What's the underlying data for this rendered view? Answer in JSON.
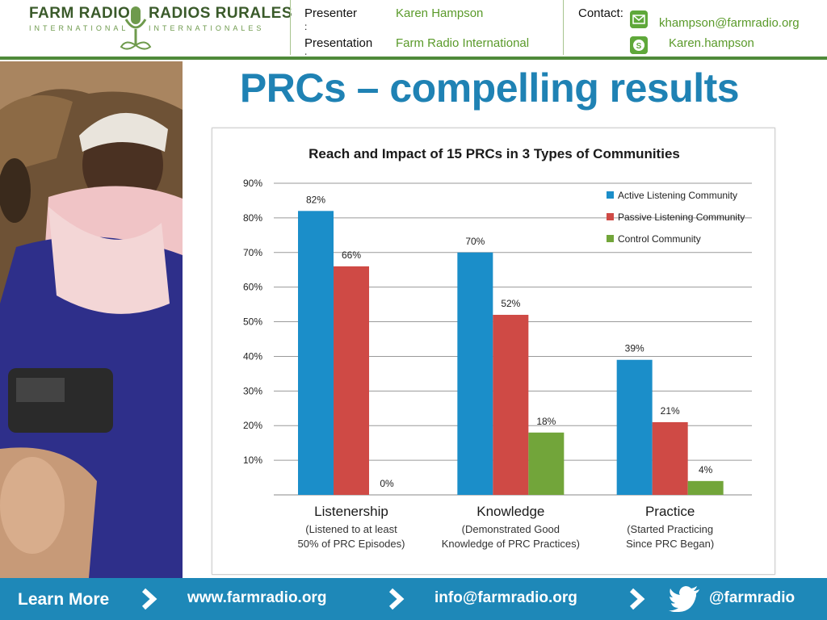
{
  "header": {
    "logo_left": "FARM RADIO",
    "logo_left_sub": "INTERNATIONAL",
    "logo_right": "RADIOS RURALES",
    "logo_right_sub": "INTERNATIONALES",
    "presenter_label": "Presenter",
    "presenter_colon": ":",
    "presenter_value": "Karen Hampson",
    "presentation_label": "Presentation",
    "presentation_colon": ":",
    "presentation_value": "Farm Radio International",
    "contact_label": "Contact:",
    "email": "khampson@farmradio.org",
    "skype": "Karen.hampson",
    "accent": "#5a9a2a"
  },
  "slide": {
    "title": "PRCs – compelling results",
    "title_color": "#1f82b4"
  },
  "chart_data": {
    "type": "bar",
    "title": "Reach and Impact of 15 PRCs in 3 Types of Communities",
    "categories": [
      "Listenership",
      "Knowledge",
      "Practice"
    ],
    "category_sublabels": [
      [
        "(Listened to at least",
        "50% of PRC Episodes)"
      ],
      [
        "(Demonstrated Good",
        "Knowledge of PRC Practices)"
      ],
      [
        "(Started Practicing",
        "Since PRC Began)"
      ]
    ],
    "series": [
      {
        "name": "Active Listening Community",
        "values": [
          82,
          70,
          39
        ],
        "labels": [
          "82%",
          "70%",
          "39%"
        ],
        "color": "#1b8ec9"
      },
      {
        "name": "Passive Listening Community",
        "values": [
          66,
          52,
          21
        ],
        "labels": [
          "66%",
          "52%",
          "21%"
        ],
        "color": "#cf4a45"
      },
      {
        "name": "Control Community",
        "values": [
          0,
          18,
          4
        ],
        "labels": [
          "0%",
          "18%",
          "4%"
        ],
        "color": "#72a53a"
      }
    ],
    "y_ticks": [
      0,
      10,
      20,
      30,
      40,
      50,
      60,
      70,
      80,
      90
    ],
    "y_tick_labels": [
      "",
      "10%",
      "20%",
      "30%",
      "40%",
      "50%",
      "60%",
      "70%",
      "80%",
      "90%"
    ],
    "ylim": [
      0,
      90
    ],
    "grid": true,
    "legend_position": "top-right"
  },
  "footer": {
    "learn_more": "Learn More",
    "website": "www.farmradio.org",
    "email": "info@farmradio.org",
    "twitter": "@farmradio",
    "background": "#1e88b8"
  }
}
